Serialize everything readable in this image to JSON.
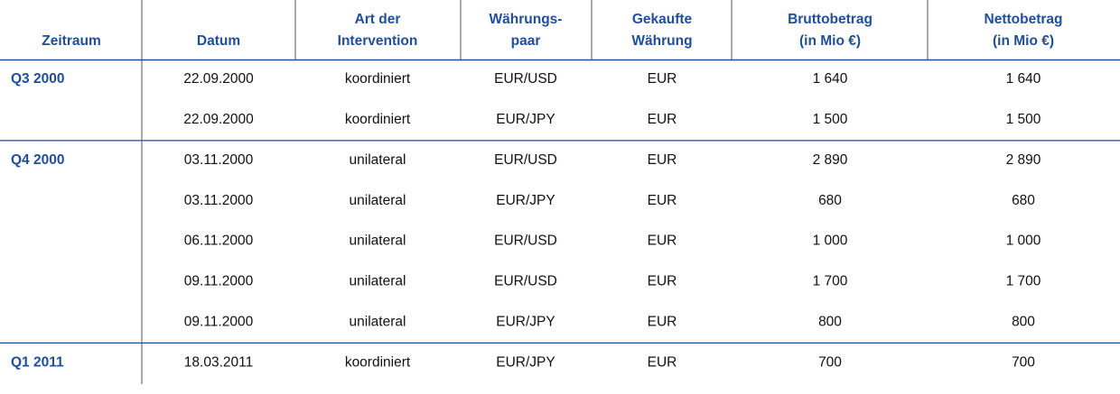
{
  "table": {
    "header": [
      [
        "Zeitraum"
      ],
      [
        "Datum"
      ],
      [
        "Art der",
        "Intervention"
      ],
      [
        "Währungs-",
        "paar"
      ],
      [
        "Gekaufte",
        "Währung"
      ],
      [
        "Bruttobetrag",
        "(in Mio €)"
      ],
      [
        "Nettobetrag",
        "(in Mio €)"
      ]
    ],
    "groups": [
      {
        "period": "Q3 2000",
        "rows": [
          [
            "22.09.2000",
            "koordiniert",
            "EUR/USD",
            "EUR",
            "1 640",
            "1 640"
          ],
          [
            "22.09.2000",
            "koordiniert",
            "EUR/JPY",
            "EUR",
            "1 500",
            "1 500"
          ]
        ]
      },
      {
        "period": "Q4 2000",
        "rows": [
          [
            "03.11.2000",
            "unilateral",
            "EUR/USD",
            "EUR",
            "2 890",
            "2 890"
          ],
          [
            "03.11.2000",
            "unilateral",
            "EUR/JPY",
            "EUR",
            "680",
            "680"
          ],
          [
            "06.11.2000",
            "unilateral",
            "EUR/USD",
            "EUR",
            "1 000",
            "1 000"
          ],
          [
            "09.11.2000",
            "unilateral",
            "EUR/USD",
            "EUR",
            "1 700",
            "1 700"
          ],
          [
            "09.11.2000",
            "unilateral",
            "EUR/JPY",
            "EUR",
            "800",
            "800"
          ]
        ]
      },
      {
        "period": "Q1 2011",
        "rows": [
          [
            "18.03.2011",
            "koordiniert",
            "EUR/JPY",
            "EUR",
            "700",
            "700"
          ]
        ]
      }
    ]
  }
}
